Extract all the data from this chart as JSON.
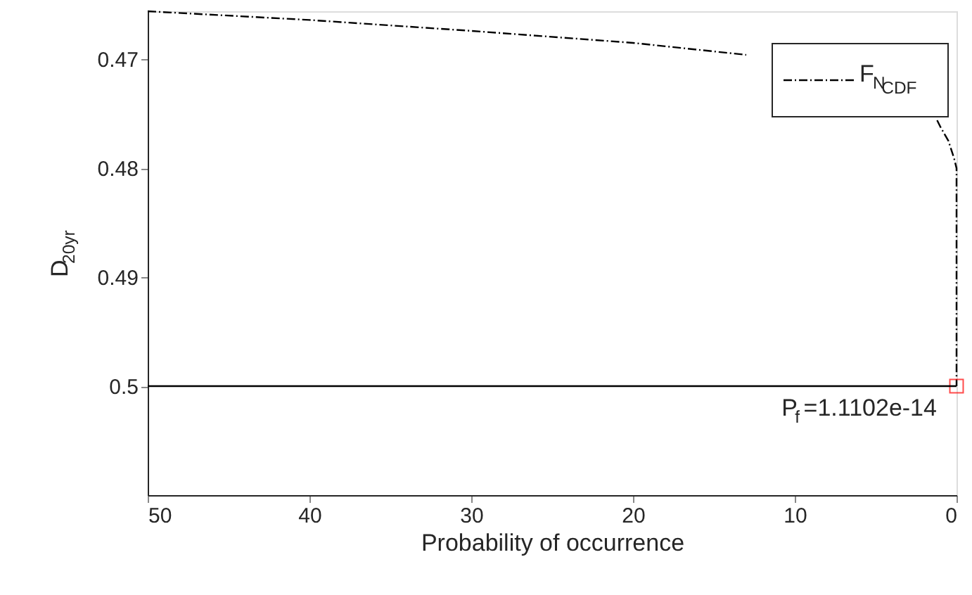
{
  "chart_data": {
    "type": "line",
    "xlabel": "Probability of occurrence",
    "ylabel": "D$_{20yr}$",
    "xlim": [
      50,
      0
    ],
    "xticks": [
      50,
      40,
      30,
      20,
      10,
      0
    ],
    "ylim": [
      0.51,
      0.4656
    ],
    "yticks": [
      0.47,
      0.48,
      0.49,
      0.5
    ],
    "grid": false,
    "legend": "top right",
    "series": [
      {
        "name": "F$_{N}$$_{CDF}$",
        "type": "line",
        "color": "#000000",
        "line_style": "dashed",
        "marker": "none",
        "x": [
          50,
          40,
          30,
          20,
          13,
          8,
          1.2,
          1,
          0.5,
          0.15,
          0,
          0,
          0
        ],
        "values": [
          0.4656,
          0.4664,
          0.4674,
          0.4685,
          0.4696,
          null,
          0.4756,
          0.4762,
          0.4775,
          0.4791,
          0.48,
          0.49,
          0.5
        ]
      },
      {
        "type": "scatter",
        "color": "#ff0000",
        "marker": "square",
        "x": [
          0
        ],
        "values": [
          0.5
        ]
      }
    ],
    "ref_lines": [
      {
        "axis": "y",
        "value": 0.5,
        "color": "#000000",
        "line_style": "solid"
      }
    ],
    "annotations": [
      {
        "text": "P$_{f}$=1.1102e-14",
        "x": 0,
        "y": 0.5
      }
    ]
  }
}
